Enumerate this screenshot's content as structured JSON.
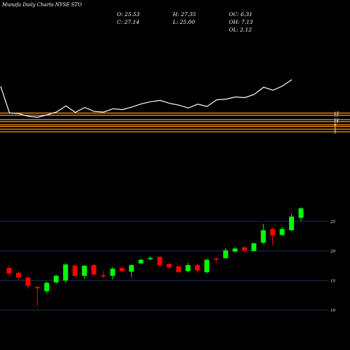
{
  "header": {
    "title": "Munafa Daily Charts NYSE STO",
    "open": "O: 25.53",
    "close": "C: 27.14",
    "high": "H: 27.35",
    "low": "L: 25.00",
    "oc": "OC: 6.31",
    "oh": "OH: 7.13",
    "ol": "OL: 2.12"
  },
  "colors": {
    "background": "#000000",
    "up": "#00ff00",
    "down": "#ff0000",
    "line": "#ffffff",
    "levels": "#ff9900",
    "grid": "#1e2a5a"
  },
  "chart_data": [
    {
      "type": "line",
      "panel": "upper",
      "series": [
        {
          "values": [
            36.3,
            16.9,
            16.4,
            14.4,
            13.7,
            15.5,
            17.6,
            22.0,
            17.3,
            20.9,
            18.0,
            17.5,
            20.0,
            19.3,
            21.2,
            23.5,
            25.1,
            26.1,
            23.9,
            22.6,
            20.5,
            23.3,
            21.6,
            26.5,
            27.0,
            28.6,
            28.1,
            30.5,
            35.7,
            33.5,
            36.6,
            41.3
          ]
        }
      ],
      "levels": {
        "values": [
          16.8,
          15.2,
          12.0,
          10.5,
          8.2,
          7.0,
          5.0,
          3.0
        ],
        "labels": [
          "17",
          "15",
          "12",
          "11",
          "8",
          "7",
          "5",
          "3"
        ]
      }
    },
    {
      "type": "candlestick",
      "panel": "lower",
      "yticks": [
        10,
        15,
        20,
        25
      ],
      "ylim": [
        9,
        28.5
      ],
      "candles": [
        {
          "o": 17.1,
          "h": 17.5,
          "l": 15.8,
          "c": 16.2
        },
        {
          "o": 16.3,
          "h": 16.6,
          "l": 15.1,
          "c": 15.5
        },
        {
          "o": 15.5,
          "h": 15.8,
          "l": 13.6,
          "c": 14.1
        },
        {
          "o": 13.9,
          "h": 14.1,
          "l": 10.7,
          "c": 13.7
        },
        {
          "o": 13.2,
          "h": 14.8,
          "l": 12.8,
          "c": 14.6
        },
        {
          "o": 14.7,
          "h": 16.0,
          "l": 14.4,
          "c": 15.8
        },
        {
          "o": 15.0,
          "h": 17.9,
          "l": 14.6,
          "c": 17.7
        },
        {
          "o": 17.5,
          "h": 17.7,
          "l": 15.6,
          "c": 15.8
        },
        {
          "o": 15.8,
          "h": 17.6,
          "l": 15.3,
          "c": 17.5
        },
        {
          "o": 17.6,
          "h": 17.8,
          "l": 15.8,
          "c": 16.0
        },
        {
          "o": 15.9,
          "h": 16.6,
          "l": 15.4,
          "c": 15.7
        },
        {
          "o": 15.8,
          "h": 17.3,
          "l": 15.2,
          "c": 17.0
        },
        {
          "o": 17.1,
          "h": 17.3,
          "l": 16.4,
          "c": 16.6
        },
        {
          "o": 16.5,
          "h": 17.7,
          "l": 15.6,
          "c": 17.6
        },
        {
          "o": 17.9,
          "h": 18.7,
          "l": 17.8,
          "c": 18.5
        },
        {
          "o": 18.6,
          "h": 19.1,
          "l": 18.4,
          "c": 18.8
        },
        {
          "o": 19.0,
          "h": 19.1,
          "l": 17.5,
          "c": 17.6
        },
        {
          "o": 17.8,
          "h": 17.9,
          "l": 16.9,
          "c": 17.2
        },
        {
          "o": 17.4,
          "h": 17.5,
          "l": 16.3,
          "c": 16.4
        },
        {
          "o": 16.6,
          "h": 18.0,
          "l": 16.4,
          "c": 17.6
        },
        {
          "o": 17.6,
          "h": 17.8,
          "l": 16.3,
          "c": 16.7
        },
        {
          "o": 16.4,
          "h": 18.7,
          "l": 16.2,
          "c": 18.5
        },
        {
          "o": 18.7,
          "h": 18.9,
          "l": 18.0,
          "c": 18.6
        },
        {
          "o": 18.8,
          "h": 20.5,
          "l": 18.7,
          "c": 20.1
        },
        {
          "o": 19.9,
          "h": 20.7,
          "l": 19.8,
          "c": 20.4
        },
        {
          "o": 20.6,
          "h": 20.8,
          "l": 19.9,
          "c": 20.1
        },
        {
          "o": 20.0,
          "h": 21.4,
          "l": 19.9,
          "c": 21.3
        },
        {
          "o": 21.4,
          "h": 24.6,
          "l": 21.2,
          "c": 23.5
        },
        {
          "o": 23.7,
          "h": 24.0,
          "l": 20.9,
          "c": 22.6
        },
        {
          "o": 22.7,
          "h": 24.1,
          "l": 22.6,
          "c": 23.7
        },
        {
          "o": 23.5,
          "h": 26.3,
          "l": 23.4,
          "c": 25.8
        },
        {
          "o": 25.6,
          "h": 27.4,
          "l": 25.0,
          "c": 27.2
        }
      ]
    }
  ]
}
